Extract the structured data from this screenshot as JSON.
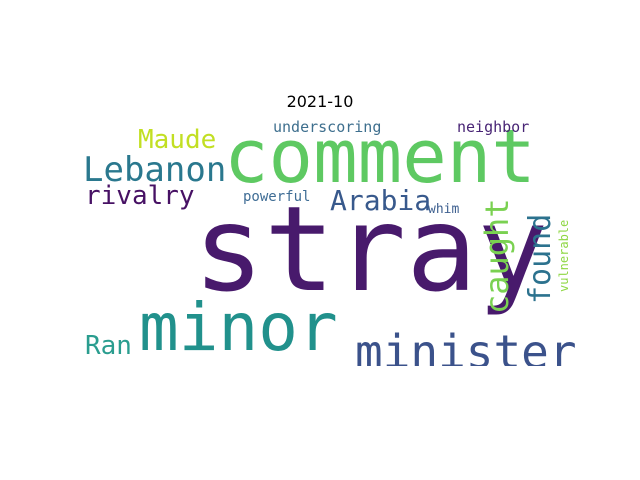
{
  "title": "2021-10",
  "words": [
    {
      "text": "stray",
      "color": "#481a6c"
    },
    {
      "text": "comment",
      "color": "#5ec962"
    },
    {
      "text": "minor",
      "color": "#21918c"
    },
    {
      "text": "minister",
      "color": "#3b528b"
    },
    {
      "text": "Lebanon",
      "color": "#2a788e"
    },
    {
      "text": "caught",
      "color": "#7ad151"
    },
    {
      "text": "found",
      "color": "#2c728e"
    },
    {
      "text": "rivalry",
      "color": "#471164"
    },
    {
      "text": "Arabia",
      "color": "#38598c"
    },
    {
      "text": "Maude",
      "color": "#c2df23"
    },
    {
      "text": "Ran",
      "color": "#2a9d8f"
    },
    {
      "text": "underscoring",
      "color": "#3e6f8e"
    },
    {
      "text": "neighbor",
      "color": "#482475"
    },
    {
      "text": "powerful",
      "color": "#3f6d95"
    },
    {
      "text": "whim",
      "color": "#3d5f8f"
    },
    {
      "text": "vulnerable",
      "color": "#8fd744"
    }
  ]
}
